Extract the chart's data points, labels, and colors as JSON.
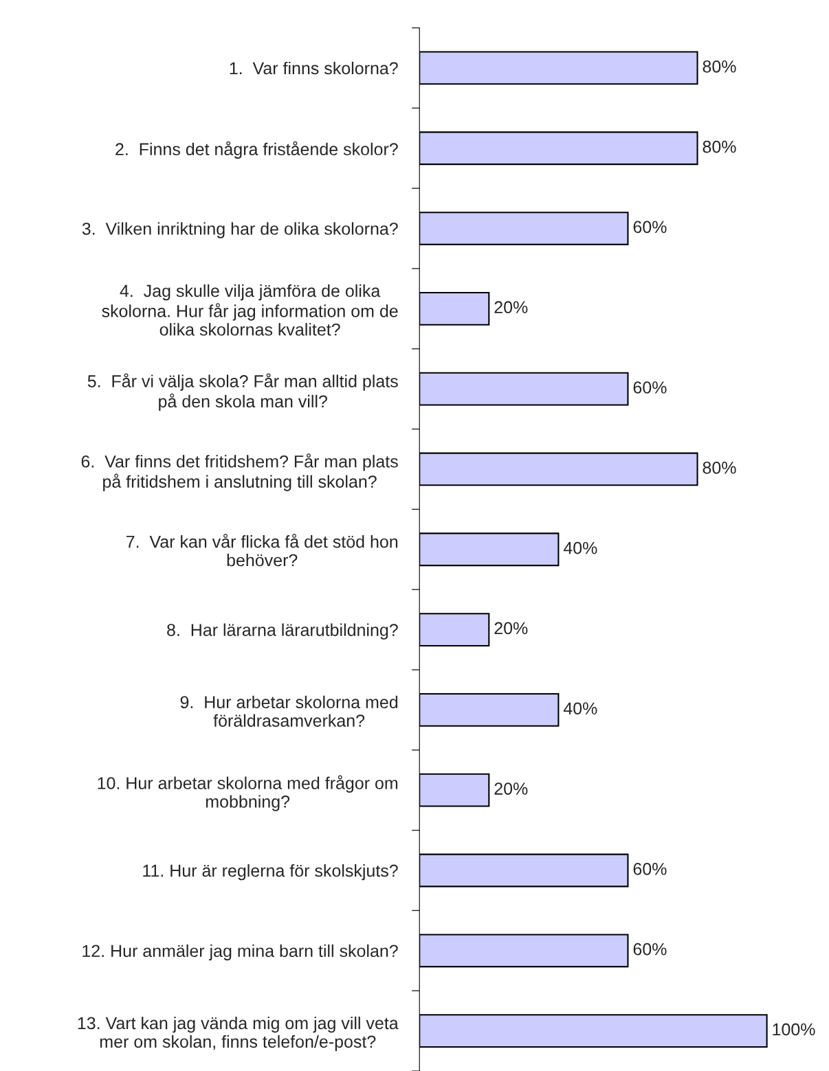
{
  "chart_data": {
    "type": "bar",
    "orientation": "horizontal",
    "data_labels": true,
    "tick_labels": "y",
    "grid": false,
    "legend": false,
    "categories": [
      "1.  Var finns skolorna?",
      "2.  Finns det några fristående skolor?",
      "3.  Vilken inriktning har de olika skolorna?",
      "4.  Jag skulle vilja jämföra de olika\nskolorna. Hur får jag information om de\nolika skolornas kvalitet?",
      "5.  Får vi välja skola? Får man alltid plats\npå den skola man vill?",
      "6.  Var finns det fritidshem? Får man plats\npå fritidshem i anslutning till skolan?",
      "7.  Var kan vår flicka få det stöd hon\nbehöver?",
      "8.  Har lärarna lärarutbildning?",
      "9.  Hur arbetar skolorna med\nföräldrasamverkan?",
      "10. Hur arbetar skolorna med frågor om\nmobbning?",
      "11. Hur är reglerna för skolskjuts?",
      "12. Hur anmäler jag mina barn till skolan?",
      "13. Vart kan jag vända mig om jag vill veta\nmer om skolan, finns telefon/e-post?"
    ],
    "values": [
      80,
      80,
      60,
      20,
      60,
      80,
      40,
      20,
      40,
      20,
      60,
      60,
      100
    ],
    "value_labels": [
      "80%",
      "80%",
      "60%",
      "20%",
      "60%",
      "80%",
      "40%",
      "20%",
      "40%",
      "20%",
      "60%",
      "60%",
      "100%"
    ],
    "color": "#ccccff"
  }
}
